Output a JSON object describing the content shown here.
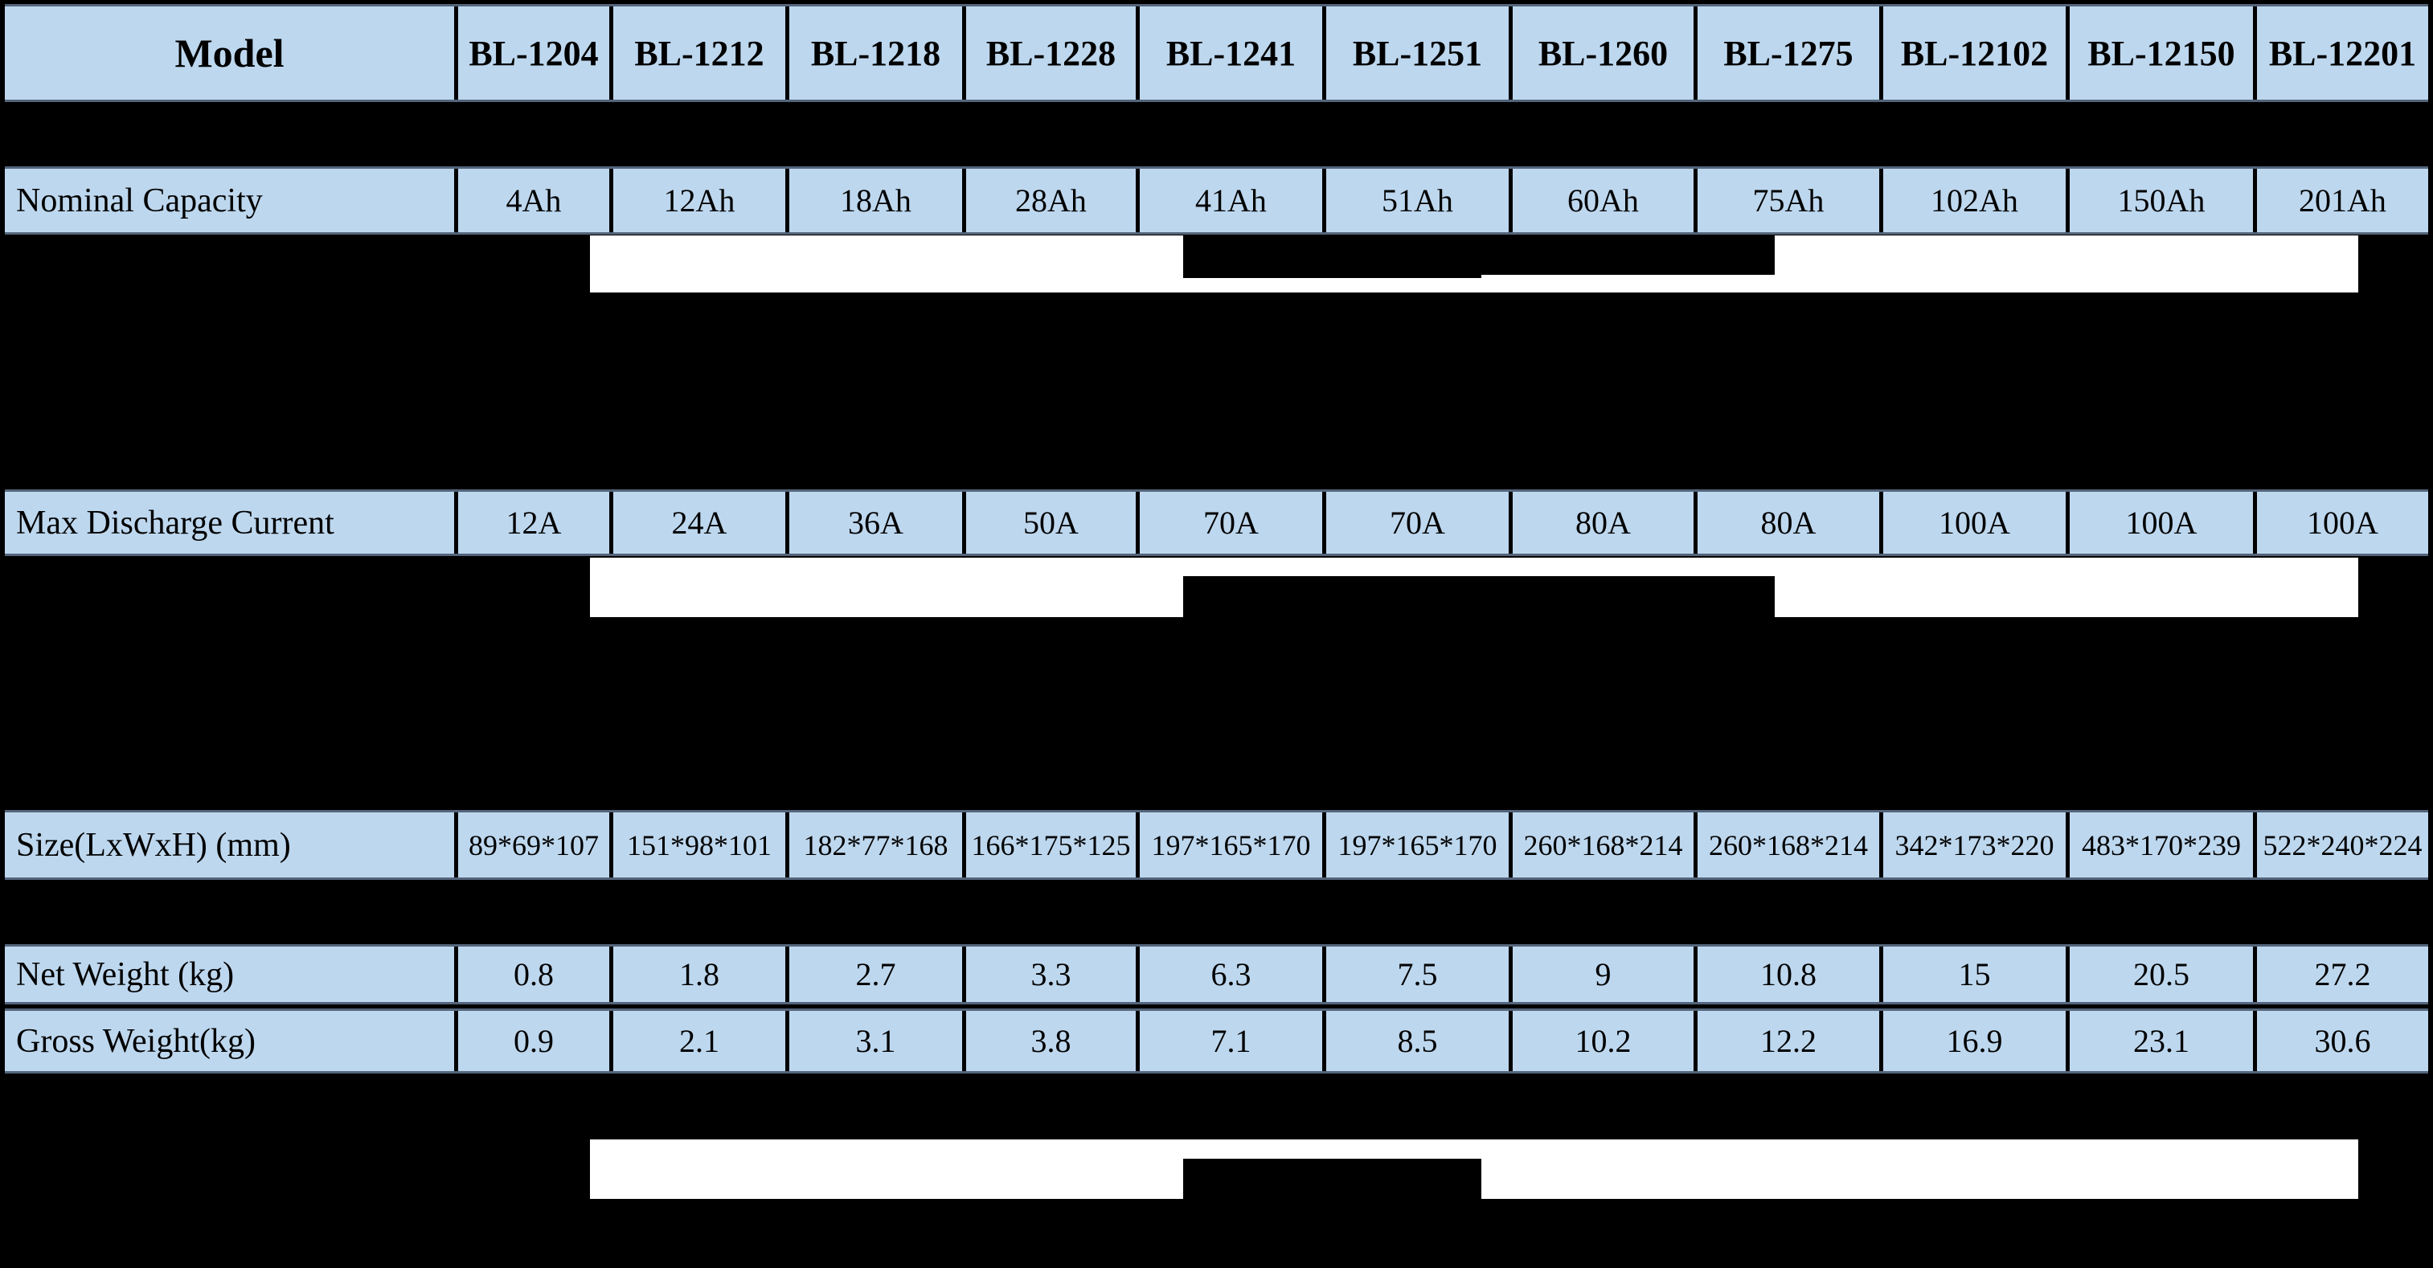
{
  "page": {
    "background": "#000000"
  },
  "table": {
    "header": {
      "model_label": "Model",
      "models": [
        "BL-1204",
        "BL-1212",
        "BL-1218",
        "BL-1228",
        "BL-1241",
        "BL-1251",
        "BL-1260",
        "BL-1275",
        "BL-12102",
        "BL-12150",
        "BL-12201"
      ]
    },
    "rows": [
      {
        "id": "nominal-capacity",
        "label": "Nominal Capacity",
        "values": [
          "4Ah",
          "12Ah",
          "18Ah",
          "28Ah",
          "41Ah",
          "51Ah",
          "60Ah",
          "75Ah",
          "102Ah",
          "150Ah",
          "201Ah"
        ]
      },
      {
        "id": "max-discharge-current",
        "label": "Max Discharge Current",
        "values": [
          "12A",
          "24A",
          "36A",
          "50A",
          "70A",
          "70A",
          "80A",
          "80A",
          "100A",
          "100A",
          "100A"
        ]
      },
      {
        "id": "size",
        "label": "Size(LxWxH) (mm)",
        "values": [
          "89*69*107",
          "151*98*101",
          "182*77*168",
          "166*175*125",
          "197*165*170",
          "197*165*170",
          "260*168*214",
          "260*168*214",
          "342*173*220",
          "483*170*239",
          "522*240*224"
        ]
      },
      {
        "id": "net-weight",
        "label": "Net Weight (kg)",
        "values": [
          "0.8",
          "1.8",
          "2.7",
          "3.3",
          "6.3",
          "7.5",
          "9",
          "10.8",
          "15",
          "20.5",
          "27.2"
        ]
      },
      {
        "id": "gross-weight",
        "label": "Gross Weight(kg)",
        "values": [
          "0.9",
          "2.1",
          "3.1",
          "3.8",
          "7.1",
          "8.5",
          "10.2",
          "12.2",
          "16.9",
          "23.1",
          "30.6"
        ]
      }
    ]
  },
  "colors": {
    "row_bg": "#bdd7ee",
    "cell_border": "#000000",
    "row_frame": "#54657b",
    "redaction_white": "#ffffff",
    "page_bg": "#000000",
    "text": "#000000"
  }
}
